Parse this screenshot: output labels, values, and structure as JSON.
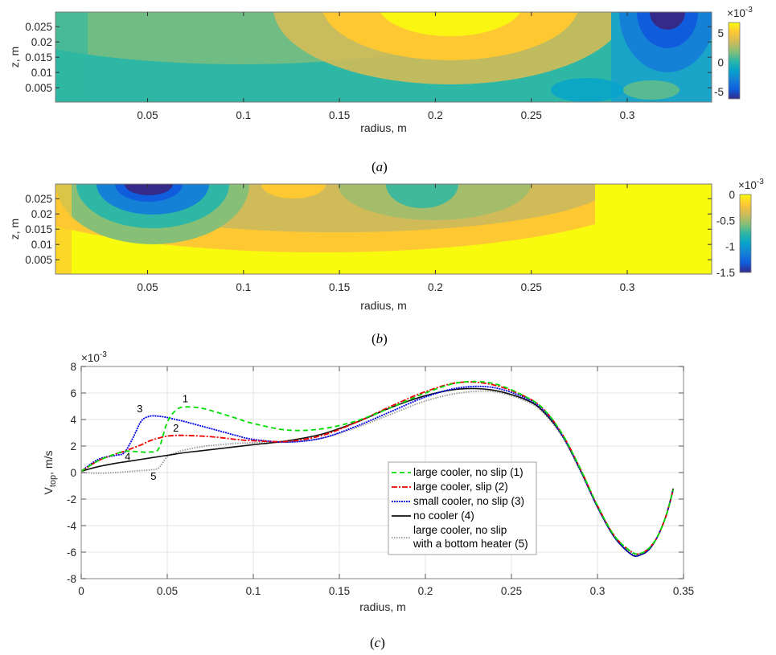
{
  "chart_data": [
    {
      "id": "a",
      "type": "heatmap",
      "caption": "a",
      "xlabel": "radius, m",
      "ylabel": "z, m",
      "xlim": [
        0.002,
        0.344
      ],
      "ylim": [
        0.0003,
        0.0298
      ],
      "xticks": [
        "0.05",
        "0.1",
        "0.15",
        "0.2",
        "0.25",
        "0.3"
      ],
      "xtick_values": [
        0.05,
        0.1,
        0.15,
        0.2,
        0.25,
        0.3
      ],
      "yticks": [
        "0.025",
        "0.02",
        "0.015",
        "0.01",
        "0.005"
      ],
      "ytick_values": [
        0.025,
        0.02,
        0.015,
        0.01,
        0.005
      ],
      "colorbar": {
        "multiplier": "×10",
        "exponent": "-3",
        "ticks": [
          "5",
          "0",
          "-5"
        ],
        "tick_values": [
          5,
          0,
          -5
        ],
        "clim": [
          -6.2,
          6.8
        ]
      },
      "features": [
        {
          "kind": "max",
          "r": 0.22,
          "z": 0.029,
          "value": 6.5
        },
        {
          "kind": "min",
          "r": 0.322,
          "z": 0.029,
          "value": -6.2
        },
        {
          "kind": "local-min",
          "r": 0.275,
          "z": 0.004,
          "value": -1.5
        },
        {
          "kind": "local-max",
          "r": 0.31,
          "z": 0.004,
          "value": 1.2
        }
      ]
    },
    {
      "id": "b",
      "type": "heatmap",
      "caption": "b",
      "xlabel": "radius, m",
      "ylabel": "z, m",
      "xlim": [
        0.002,
        0.344
      ],
      "ylim": [
        0.0003,
        0.0298
      ],
      "xticks": [
        "0.05",
        "0.1",
        "0.15",
        "0.2",
        "0.25",
        "0.3"
      ],
      "xtick_values": [
        0.05,
        0.1,
        0.15,
        0.2,
        0.25,
        0.3
      ],
      "yticks": [
        "0.025",
        "0.02",
        "0.015",
        "0.01",
        "0.005"
      ],
      "ytick_values": [
        0.025,
        0.02,
        0.015,
        0.01,
        0.005
      ],
      "colorbar": {
        "multiplier": "×10",
        "exponent": "-3",
        "ticks": [
          "0",
          "-0.5",
          "-1",
          "-1.5"
        ],
        "tick_values": [
          0,
          -0.5,
          -1,
          -1.5
        ],
        "clim": [
          -1.5,
          0
        ]
      },
      "features": [
        {
          "kind": "min",
          "r": 0.05,
          "z": 0.029,
          "value": -1.5
        },
        {
          "kind": "local-min",
          "r": 0.19,
          "z": 0.027,
          "value": -0.85
        },
        {
          "kind": "local-max",
          "r": 0.125,
          "z": 0.029,
          "value": -0.3
        }
      ]
    },
    {
      "id": "c",
      "type": "line",
      "caption": "c",
      "xlabel": "radius, m",
      "ylabel": "V",
      "ylabel_sub": "top",
      "ylabel_suffix": ", m/s",
      "xlim": [
        0,
        0.35
      ],
      "ylim": [
        -8,
        8
      ],
      "y_multiplier": "×10",
      "y_exponent": "-3",
      "grid": true,
      "legend_position": "center-right",
      "xticks": [
        "0",
        "0.05",
        "0.1",
        "0.15",
        "0.2",
        "0.25",
        "0.3",
        "0.35"
      ],
      "xtick_values": [
        0,
        0.05,
        0.1,
        0.15,
        0.2,
        0.25,
        0.3,
        0.35
      ],
      "yticks": [
        "8",
        "6",
        "4",
        "2",
        "0",
        "-2",
        "-4",
        "-6",
        "-8"
      ],
      "ytick_values": [
        8,
        6,
        4,
        2,
        0,
        -2,
        -4,
        -6,
        -8
      ],
      "x": [
        0.0,
        0.01,
        0.02,
        0.025,
        0.03,
        0.035,
        0.04,
        0.045,
        0.05,
        0.055,
        0.06,
        0.07,
        0.08,
        0.09,
        0.1,
        0.12,
        0.14,
        0.16,
        0.18,
        0.2,
        0.22,
        0.24,
        0.26,
        0.27,
        0.28,
        0.29,
        0.3,
        0.31,
        0.32,
        0.325,
        0.33,
        0.335,
        0.34,
        0.344
      ],
      "series": [
        {
          "name": "large cooler, no slip (1)",
          "label": "1",
          "color": "#00dd00",
          "dash": "6 4",
          "values": [
            0.1,
            0.9,
            1.4,
            1.6,
            1.6,
            1.55,
            1.55,
            1.8,
            3.8,
            4.7,
            4.95,
            4.85,
            4.5,
            4.1,
            3.7,
            3.2,
            3.3,
            3.9,
            4.9,
            6.0,
            6.8,
            6.7,
            5.6,
            4.6,
            2.8,
            0.3,
            -2.5,
            -4.8,
            -6.0,
            -6.1,
            -5.7,
            -4.8,
            -3.2,
            -1.3
          ]
        },
        {
          "name": "large cooler, slip (2)",
          "label": "2",
          "color": "#ee0000",
          "dash": "7 2 2 2",
          "values": [
            0.1,
            0.9,
            1.4,
            1.6,
            1.85,
            2.1,
            2.4,
            2.6,
            2.75,
            2.8,
            2.8,
            2.75,
            2.65,
            2.5,
            2.4,
            2.35,
            2.8,
            3.8,
            5.0,
            6.1,
            6.8,
            6.6,
            5.6,
            4.6,
            2.8,
            0.3,
            -2.5,
            -4.8,
            -6.0,
            -6.1,
            -5.7,
            -4.8,
            -3.2,
            -1.3
          ]
        },
        {
          "name": "small cooler, no slip (3)",
          "label": "3",
          "color": "#0000ee",
          "dash": "2 1",
          "values": [
            0.1,
            1.0,
            1.3,
            1.5,
            2.6,
            3.9,
            4.25,
            4.25,
            4.15,
            4.0,
            3.85,
            3.5,
            3.15,
            2.8,
            2.5,
            2.3,
            2.6,
            3.5,
            4.6,
            5.7,
            6.4,
            6.4,
            5.5,
            4.5,
            2.7,
            0.2,
            -2.6,
            -4.9,
            -6.2,
            -6.2,
            -5.8,
            -4.8,
            -3.2,
            -1.3
          ]
        },
        {
          "name": "no cooler (4)",
          "label": "4",
          "color": "#111111",
          "dash": "",
          "values": [
            0.1,
            0.45,
            0.7,
            0.8,
            0.9,
            1.0,
            1.1,
            1.2,
            1.3,
            1.4,
            1.5,
            1.65,
            1.8,
            1.95,
            2.1,
            2.4,
            2.9,
            3.8,
            4.9,
            5.8,
            6.3,
            6.2,
            5.4,
            4.4,
            2.7,
            0.2,
            -2.6,
            -4.9,
            -6.2,
            -6.2,
            -5.8,
            -4.8,
            -3.2,
            -1.2
          ]
        },
        {
          "name": "large cooler, no slip\nwith a bottom heater (5)",
          "name_line1": "large cooler, no slip",
          "name_line2": "with a bottom heater (5)",
          "label": "5",
          "color": "#999999",
          "dash": "1.5 1.5",
          "values": [
            0.0,
            -0.05,
            0.0,
            0.05,
            0.1,
            0.15,
            0.2,
            0.35,
            1.2,
            1.5,
            1.7,
            1.95,
            2.1,
            2.2,
            2.25,
            2.3,
            2.6,
            3.4,
            4.4,
            5.4,
            6.0,
            6.1,
            5.3,
            4.3,
            2.6,
            0.1,
            -2.6,
            -4.9,
            -6.1,
            -6.1,
            -5.7,
            -4.8,
            -3.2,
            -1.3
          ]
        }
      ],
      "annotations": [
        {
          "text": "1",
          "x": 0.0605,
          "y": 5.3
        },
        {
          "text": "2",
          "x": 0.055,
          "y": 3.1
        },
        {
          "text": "3",
          "x": 0.034,
          "y": 4.55
        },
        {
          "text": "4",
          "x": 0.027,
          "y": 0.95
        },
        {
          "text": "5",
          "x": 0.042,
          "y": -0.55
        }
      ]
    }
  ]
}
